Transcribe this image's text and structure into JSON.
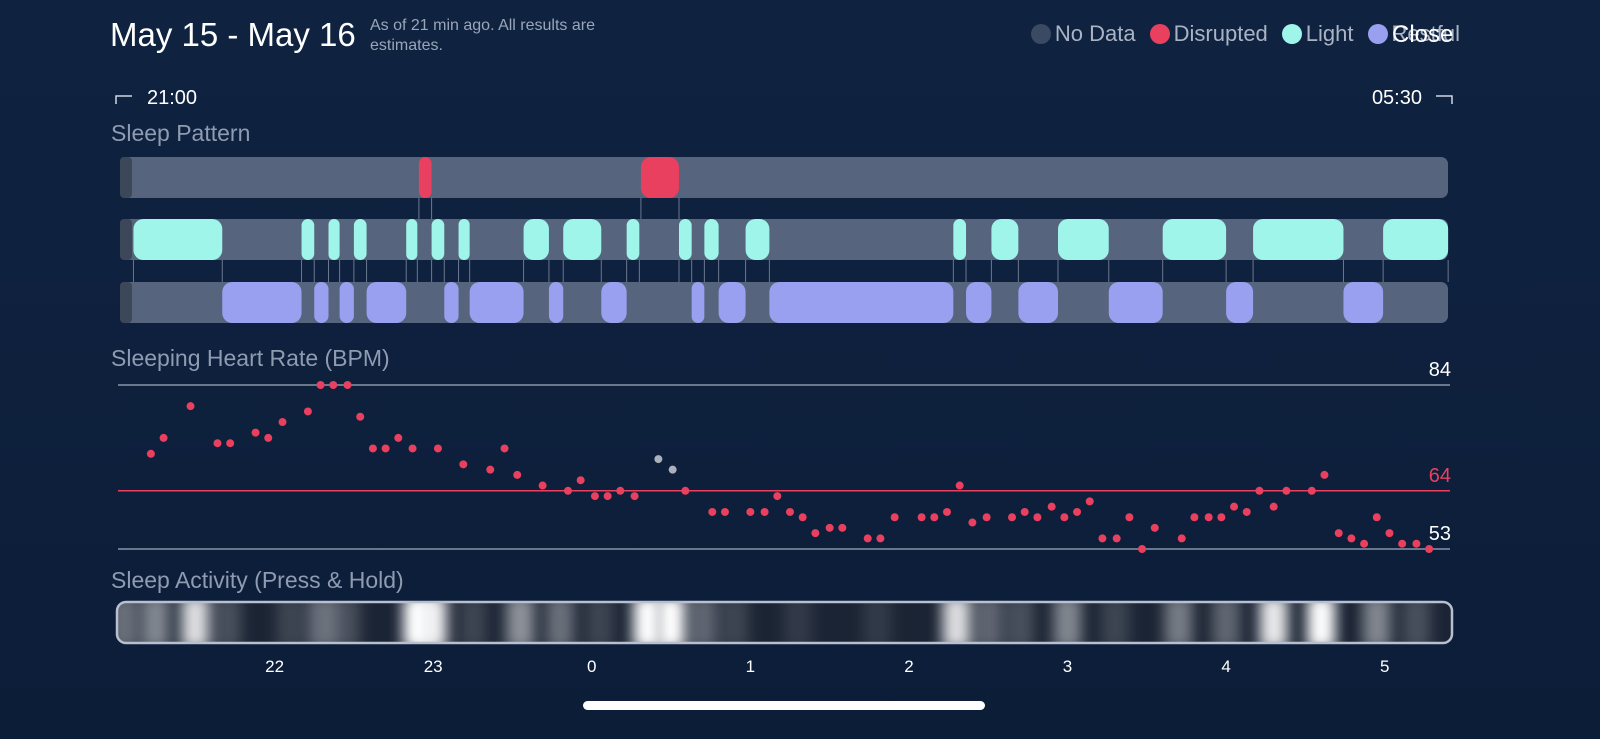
{
  "header": {
    "title": "May 15 - May 16",
    "subtitle": "As of 21 min ago. All results are estimates.",
    "close": "Close"
  },
  "legend": [
    {
      "label": "No Data",
      "color": "#3a4a63"
    },
    {
      "label": "Disrupted",
      "color": "#e8405e"
    },
    {
      "label": "Light",
      "color": "#9ff5ea"
    },
    {
      "label": "Restful",
      "color": "#9aa0f0"
    }
  ],
  "range": {
    "start": "21:00",
    "end": "05:30"
  },
  "xlim": [
    -3,
    5.5
  ],
  "xticks": [
    {
      "value": -2,
      "label": "22"
    },
    {
      "value": -1,
      "label": "23"
    },
    0,
    1,
    2,
    3,
    4,
    5
  ],
  "sleep_pattern": {
    "title": "Sleep Pattern",
    "rows": [
      {
        "color": "#e8405e",
        "segments": [
          [
            -1.09,
            -1.01
          ],
          [
            0.31,
            0.55
          ]
        ]
      },
      {
        "color": "#9ff5ea",
        "segments": [
          [
            -2.89,
            -2.33
          ],
          [
            -1.83,
            -1.75
          ],
          [
            -1.66,
            -1.59
          ],
          [
            -1.5,
            -1.42
          ],
          [
            -1.17,
            -1.1
          ],
          [
            -1.01,
            -0.93
          ],
          [
            -0.84,
            -0.77
          ],
          [
            -0.43,
            -0.27
          ],
          [
            -0.18,
            0.06
          ],
          [
            0.22,
            0.3
          ],
          [
            0.55,
            0.63
          ],
          [
            0.71,
            0.8
          ],
          [
            0.97,
            1.12
          ],
          [
            2.28,
            2.36
          ],
          [
            2.52,
            2.69
          ],
          [
            2.94,
            3.26
          ],
          [
            3.6,
            4.0
          ],
          [
            4.17,
            4.74
          ],
          [
            4.99,
            5.4
          ]
        ]
      },
      {
        "color": "#9aa0f0",
        "segments": [
          [
            -2.33,
            -1.83
          ],
          [
            -1.75,
            -1.66
          ],
          [
            -1.59,
            -1.5
          ],
          [
            -1.42,
            -1.17
          ],
          [
            -0.93,
            -0.84
          ],
          [
            -0.77,
            -0.43
          ],
          [
            -0.27,
            -0.18
          ],
          [
            0.06,
            0.22
          ],
          [
            0.63,
            0.71
          ],
          [
            0.8,
            0.97
          ],
          [
            1.12,
            2.28
          ],
          [
            2.36,
            2.52
          ],
          [
            2.69,
            2.94
          ],
          [
            3.26,
            3.6
          ],
          [
            4.0,
            4.17
          ],
          [
            4.74,
            4.99
          ]
        ]
      }
    ]
  },
  "heart_rate": {
    "title": "Sleeping Heart Rate (BPM)",
    "ylim": [
      53,
      84
    ],
    "yticks": [
      53,
      64,
      84
    ],
    "ytick_colors": [
      "#ffffff",
      "#e8405e",
      "#ffffff"
    ],
    "line_colors": [
      "#8a94a8",
      "#e8405e",
      "#8a94a8"
    ],
    "series": [
      {
        "color": "#e8405e",
        "x": [
          -2.78,
          -2.7,
          -2.53,
          -2.36,
          -2.28,
          -2.12,
          -2.04,
          -1.95,
          -1.79,
          -1.71,
          -1.63,
          -1.54,
          -1.46,
          -1.38,
          -1.3,
          -1.22,
          -1.13,
          -0.97,
          -0.81,
          -0.64,
          -0.55,
          -0.47,
          -0.31,
          -0.15,
          -0.07,
          0.02,
          0.1,
          0.18,
          0.27,
          0.59,
          0.76,
          0.84,
          1.0,
          1.09,
          1.17,
          1.25,
          1.33,
          1.41,
          1.5,
          1.58,
          1.74,
          1.82,
          1.91,
          2.08,
          2.16,
          2.24,
          2.32,
          2.4,
          2.49,
          2.65,
          2.73,
          2.81,
          2.9,
          2.98,
          3.06,
          3.14,
          3.22,
          3.31,
          3.39,
          3.47,
          3.55,
          3.72,
          3.8,
          3.89,
          3.97,
          4.05,
          4.13,
          4.21,
          4.3,
          4.38,
          4.54,
          4.62,
          4.71,
          4.79,
          4.87,
          4.95,
          5.03,
          5.11,
          5.2,
          5.28
        ],
        "values": [
          71,
          74,
          80,
          73,
          73,
          75,
          74,
          77,
          79,
          84,
          84,
          84,
          78,
          72,
          72,
          74,
          72,
          72,
          69,
          68,
          72,
          67,
          65,
          64,
          66,
          63,
          63,
          64,
          63,
          64,
          60,
          60,
          60,
          60,
          63,
          60,
          59,
          56,
          57,
          57,
          55,
          55,
          59,
          59,
          59,
          60,
          65,
          58,
          59,
          59,
          60,
          59,
          61,
          59,
          60,
          62,
          55,
          55,
          59,
          53,
          57,
          55,
          59,
          59,
          59,
          61,
          60,
          64,
          61,
          64,
          64,
          67,
          56,
          55,
          54,
          59,
          56,
          54,
          54,
          53
        ]
      },
      {
        "color": "#aab0bc",
        "x": [
          0.42,
          0.51
        ],
        "values": [
          70,
          68
        ]
      }
    ]
  },
  "activity": {
    "title": "Sleep Activity (Press & Hold)",
    "x": [
      -2.95,
      -2.75,
      -2.5,
      -2.3,
      -1.9,
      -1.7,
      -1.55,
      -1.1,
      -1.0,
      -0.75,
      -0.45,
      -0.2,
      0.05,
      0.35,
      0.5,
      0.7,
      0.9,
      1.3,
      1.8,
      2.3,
      2.5,
      2.7,
      3.0,
      3.3,
      3.7,
      4.0,
      4.3,
      4.6,
      4.95,
      5.2
    ],
    "values": [
      0.35,
      0.45,
      0.85,
      0.2,
      0.15,
      0.35,
      0.2,
      1.0,
      0.9,
      0.15,
      0.5,
      0.35,
      0.15,
      1.0,
      1.0,
      0.3,
      0.15,
      0.1,
      0.1,
      0.85,
      0.3,
      0.2,
      0.45,
      0.15,
      0.4,
      0.3,
      0.9,
      1.0,
      0.45,
      0.2
    ]
  }
}
